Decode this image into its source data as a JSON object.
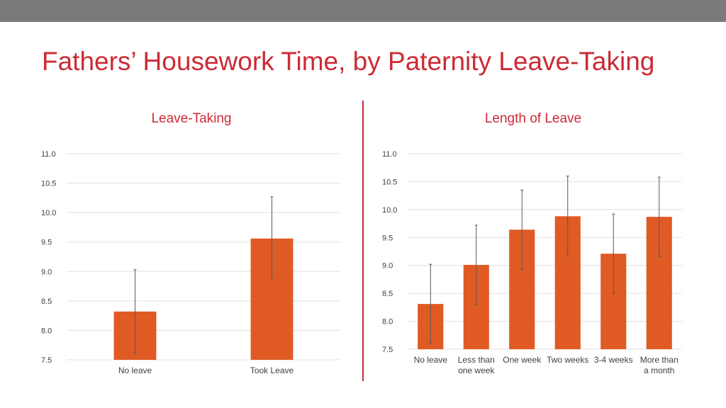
{
  "title": "Fathers’ Housework Time, by Paternity Leave-Taking",
  "colors": {
    "bar": "#e05a24",
    "title": "#cc2b35",
    "divider": "#cc2b35",
    "header_bar": "#7a7a7a",
    "grid": "#e0e0e0",
    "error_bar": "#595959"
  },
  "chart_data": [
    {
      "type": "bar",
      "title": "Leave-Taking",
      "categories": [
        "No leave",
        "Took Leave"
      ],
      "values": [
        8.32,
        9.56
      ],
      "error_low": [
        7.61,
        8.86
      ],
      "error_high": [
        9.03,
        10.27
      ],
      "ylim": [
        7.5,
        11.0
      ],
      "yticks": [
        7.5,
        8.0,
        8.5,
        9.0,
        9.5,
        10.0,
        10.5,
        11.0
      ],
      "ytick_labels": [
        "7.5",
        "8.0",
        "8.5",
        "9.0",
        "9.5",
        "10.0",
        "10.5",
        "11.0"
      ],
      "grid": true,
      "xlabel": "",
      "ylabel": ""
    },
    {
      "type": "bar",
      "title": "Length of Leave",
      "categories": [
        "No leave",
        "Less than one week",
        "One week",
        "Two weeks",
        "3-4 weeks",
        "More than a month"
      ],
      "category_lines": [
        [
          "No leave"
        ],
        [
          "Less than",
          "one week"
        ],
        [
          "One week"
        ],
        [
          "Two weeks"
        ],
        [
          "3-4 weeks"
        ],
        [
          "More than",
          "a month"
        ]
      ],
      "values": [
        8.31,
        9.01,
        9.64,
        9.88,
        9.21,
        9.87
      ],
      "error_low": [
        7.6,
        8.3,
        8.93,
        9.17,
        8.5,
        9.16
      ],
      "error_high": [
        9.02,
        9.72,
        10.35,
        10.6,
        9.92,
        10.58
      ],
      "ylim": [
        7.5,
        11.0
      ],
      "yticks": [
        7.5,
        8.0,
        8.5,
        9.0,
        9.5,
        10.0,
        10.5,
        11.0
      ],
      "ytick_labels": [
        "7.5",
        "8.0",
        "8.5",
        "9.0",
        "9.5",
        "10.0",
        "10.5",
        "11.0"
      ],
      "grid": true,
      "xlabel": "",
      "ylabel": ""
    }
  ]
}
